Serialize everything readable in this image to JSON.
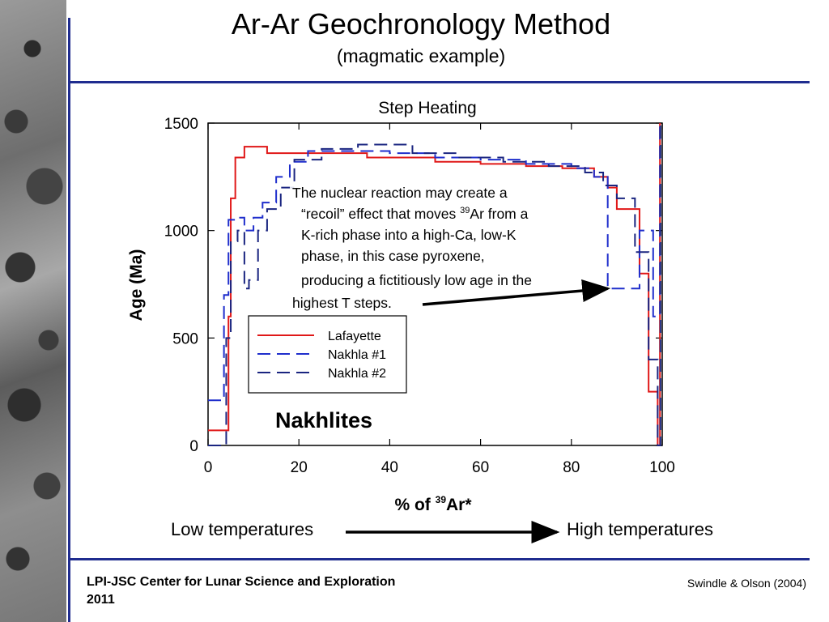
{
  "slide": {
    "title": "Ar-Ar Geochronology Method",
    "subtitle": "(magmatic example)",
    "footer_left_line1": "LPI-JSC Center for Lunar Science and Exploration",
    "footer_left_line2": "2011",
    "footer_right": "Swindle & Olson (2004)",
    "low_temp_label": "Low temperatures",
    "high_temp_label": "High temperatures",
    "accent_color": "#1f2c8f"
  },
  "chart_data": {
    "type": "line",
    "title": "Step Heating",
    "xlabel": "% of 39Ar*",
    "ylabel": "Age (Ma)",
    "xlim": [
      0,
      100
    ],
    "ylim": [
      0,
      1500
    ],
    "x_ticks": [
      "0",
      "20",
      "40",
      "60",
      "80",
      "100"
    ],
    "y_ticks": [
      "0",
      "500",
      "1000",
      "1500"
    ],
    "grid": false,
    "legend_position": "lower-left",
    "in_plot_label": "Nakhlites",
    "annotation": {
      "line1": "The nuclear reaction may create a",
      "line2_pre": "“recoil” effect that moves ",
      "line2_sup": "39",
      "line2_post": "Ar from a",
      "line3": "K-rich phase into a high-Ca, low-K",
      "line4": "phase, in this case pyroxene,",
      "line5": "producing a fictitiously low age in the",
      "line6": "highest T steps.",
      "points_to": [
        88,
        730
      ]
    },
    "series": [
      {
        "name": "Lafayette",
        "color": "#e01818",
        "dash": "solid",
        "steps": [
          [
            0,
            70
          ],
          [
            4,
            70
          ],
          [
            4.5,
            600
          ],
          [
            5,
            1150
          ],
          [
            6,
            1340
          ],
          [
            8,
            1390
          ],
          [
            13,
            1360
          ],
          [
            25,
            1360
          ],
          [
            35,
            1340
          ],
          [
            50,
            1320
          ],
          [
            60,
            1310
          ],
          [
            70,
            1300
          ],
          [
            78,
            1290
          ],
          [
            85,
            1250
          ],
          [
            88,
            1200
          ],
          [
            90,
            1100
          ],
          [
            95,
            800
          ],
          [
            97,
            250
          ],
          [
            99,
            0
          ],
          [
            99.5,
            1500
          ]
        ]
      },
      {
        "name": "Nakhla #1",
        "color": "#1f2ecc",
        "dash": "long",
        "steps": [
          [
            0,
            210
          ],
          [
            3,
            210
          ],
          [
            3.5,
            700
          ],
          [
            4.5,
            1050
          ],
          [
            6,
            1060
          ],
          [
            8,
            1000
          ],
          [
            10,
            1060
          ],
          [
            12,
            1130
          ],
          [
            15,
            1250
          ],
          [
            18,
            1320
          ],
          [
            22,
            1370
          ],
          [
            30,
            1370
          ],
          [
            40,
            1360
          ],
          [
            50,
            1340
          ],
          [
            60,
            1330
          ],
          [
            70,
            1310
          ],
          [
            80,
            1290
          ],
          [
            85,
            1250
          ],
          [
            88,
            730
          ],
          [
            92,
            730
          ],
          [
            95,
            1000
          ],
          [
            98,
            600
          ],
          [
            99.5,
            1500
          ]
        ]
      },
      {
        "name": "Nakhla #2",
        "color": "#1a2580",
        "dash": "long",
        "steps": [
          [
            0,
            0
          ],
          [
            3.5,
            0
          ],
          [
            4,
            500
          ],
          [
            5,
            950
          ],
          [
            6.5,
            1000
          ],
          [
            8,
            730
          ],
          [
            9,
            770
          ],
          [
            11,
            1000
          ],
          [
            13,
            1100
          ],
          [
            16,
            1200
          ],
          [
            19,
            1330
          ],
          [
            25,
            1380
          ],
          [
            33,
            1400
          ],
          [
            45,
            1360
          ],
          [
            55,
            1340
          ],
          [
            65,
            1320
          ],
          [
            75,
            1300
          ],
          [
            83,
            1270
          ],
          [
            87,
            1210
          ],
          [
            90,
            1150
          ],
          [
            94,
            900
          ],
          [
            97,
            400
          ],
          [
            99,
            0
          ],
          [
            99.6,
            1500
          ]
        ]
      }
    ]
  }
}
